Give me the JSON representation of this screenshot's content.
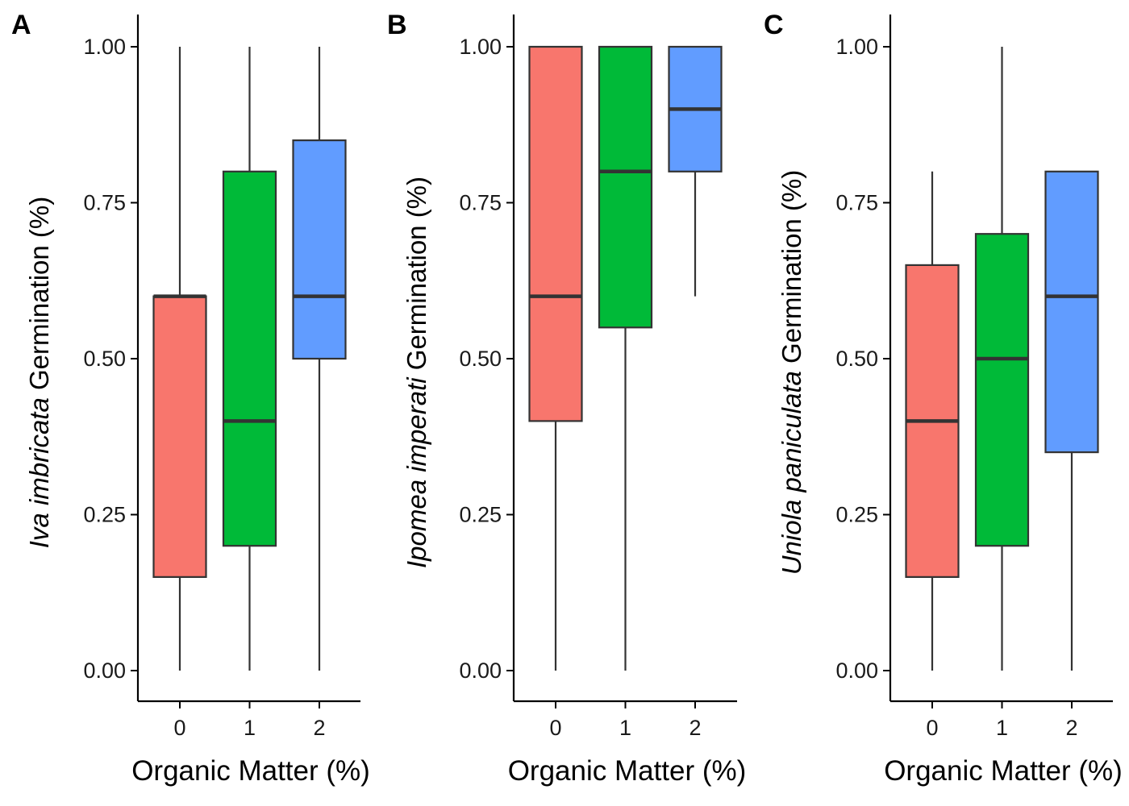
{
  "chart_data": [
    {
      "type": "boxplot",
      "panel": "A",
      "xlabel": "Organic Matter (%)",
      "ylabel_italic": "Iva imbricata",
      "ylabel_rest": " Germination  (%)",
      "ylim": [
        -0.05,
        1.05
      ],
      "yticks": [
        "0.00",
        "0.25",
        "0.50",
        "0.75",
        "1.00"
      ],
      "ytick_values": [
        0,
        0.25,
        0.5,
        0.75,
        1
      ],
      "categories": [
        "0",
        "1",
        "2"
      ],
      "boxes": [
        {
          "category": "0",
          "min": 0.0,
          "q1": 0.15,
          "median": 0.6,
          "q3": 0.6,
          "max": 1.0,
          "color": "#F8766D"
        },
        {
          "category": "1",
          "min": 0.0,
          "q1": 0.2,
          "median": 0.4,
          "q3": 0.8,
          "max": 1.0,
          "color": "#00BA38"
        },
        {
          "category": "2",
          "min": 0.0,
          "q1": 0.5,
          "median": 0.6,
          "q3": 0.85,
          "max": 1.0,
          "color": "#619CFF"
        }
      ]
    },
    {
      "type": "boxplot",
      "panel": "B",
      "xlabel": "Organic Matter (%)",
      "ylabel_italic": "Ipomea imperati",
      "ylabel_rest": " Germination (%)",
      "ylim": [
        -0.05,
        1.05
      ],
      "yticks": [
        "0.00",
        "0.25",
        "0.50",
        "0.75",
        "1.00"
      ],
      "ytick_values": [
        0,
        0.25,
        0.5,
        0.75,
        1
      ],
      "categories": [
        "0",
        "1",
        "2"
      ],
      "boxes": [
        {
          "category": "0",
          "min": 0.0,
          "q1": 0.4,
          "median": 0.6,
          "q3": 1.0,
          "max": 1.0,
          "color": "#F8766D"
        },
        {
          "category": "1",
          "min": 0.0,
          "q1": 0.55,
          "median": 0.8,
          "q3": 1.0,
          "max": 1.0,
          "color": "#00BA38"
        },
        {
          "category": "2",
          "min": 0.6,
          "q1": 0.8,
          "median": 0.9,
          "q3": 1.0,
          "max": 1.0,
          "color": "#619CFF"
        }
      ]
    },
    {
      "type": "boxplot",
      "panel": "C",
      "xlabel": "Organic Matter (%)",
      "ylabel_italic": "Uniola paniculata",
      "ylabel_rest": " Germination (%)",
      "ylim": [
        -0.05,
        1.05
      ],
      "yticks": [
        "0.00",
        "0.25",
        "0.50",
        "0.75",
        "1.00"
      ],
      "ytick_values": [
        0,
        0.25,
        0.5,
        0.75,
        1
      ],
      "categories": [
        "0",
        "1",
        "2"
      ],
      "boxes": [
        {
          "category": "0",
          "min": 0.0,
          "q1": 0.15,
          "median": 0.4,
          "q3": 0.65,
          "max": 0.8,
          "color": "#F8766D"
        },
        {
          "category": "1",
          "min": 0.0,
          "q1": 0.2,
          "median": 0.5,
          "q3": 0.7,
          "max": 1.0,
          "color": "#00BA38"
        },
        {
          "category": "2",
          "min": 0.0,
          "q1": 0.35,
          "median": 0.6,
          "q3": 0.8,
          "max": 0.8,
          "color": "#619CFF"
        }
      ]
    }
  ]
}
